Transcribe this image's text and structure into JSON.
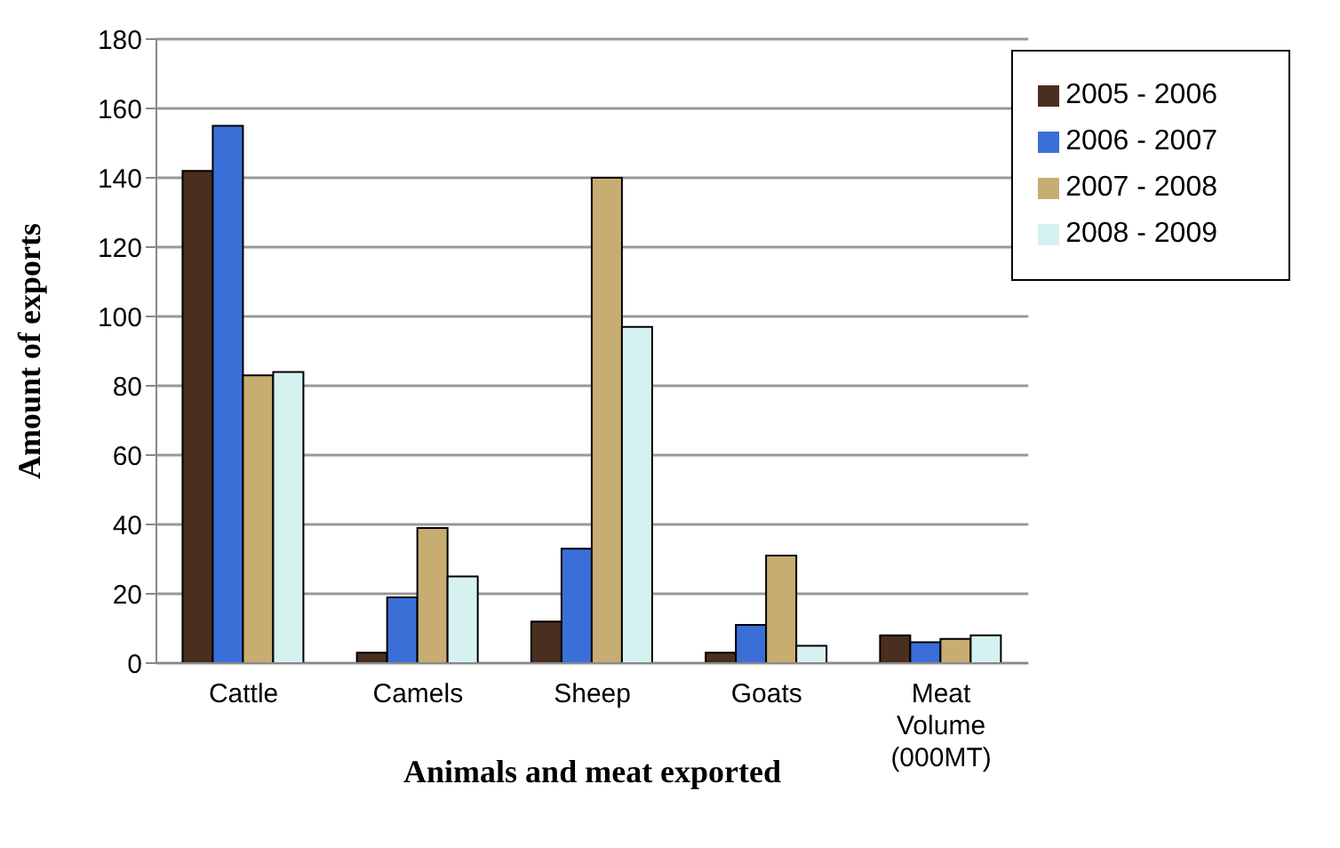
{
  "chart_data": {
    "type": "bar",
    "xlabel": "Animals  and meat exported",
    "ylabel": "Amount of exports",
    "categories": [
      "Cattle",
      "Camels",
      "Sheep",
      "Goats",
      "Meat Volume (000MT)"
    ],
    "series": [
      {
        "name": "2005 - 2006",
        "color": "#4a2e1f",
        "values": [
          142,
          3,
          12,
          3,
          8
        ]
      },
      {
        "name": "2006 - 2007",
        "color": "#3a6fd8",
        "values": [
          155,
          19,
          33,
          11,
          6
        ]
      },
      {
        "name": "2007 - 2008",
        "color": "#c8ad72",
        "values": [
          83,
          39,
          140,
          31,
          7
        ]
      },
      {
        "name": "2008 - 2009",
        "color": "#d6f2f0",
        "values": [
          84,
          25,
          97,
          5,
          8
        ]
      }
    ],
    "ylim": [
      0,
      180
    ],
    "yticks": [
      0,
      20,
      40,
      60,
      80,
      100,
      120,
      140,
      160,
      180
    ],
    "grid": "y",
    "legend": "top right"
  }
}
